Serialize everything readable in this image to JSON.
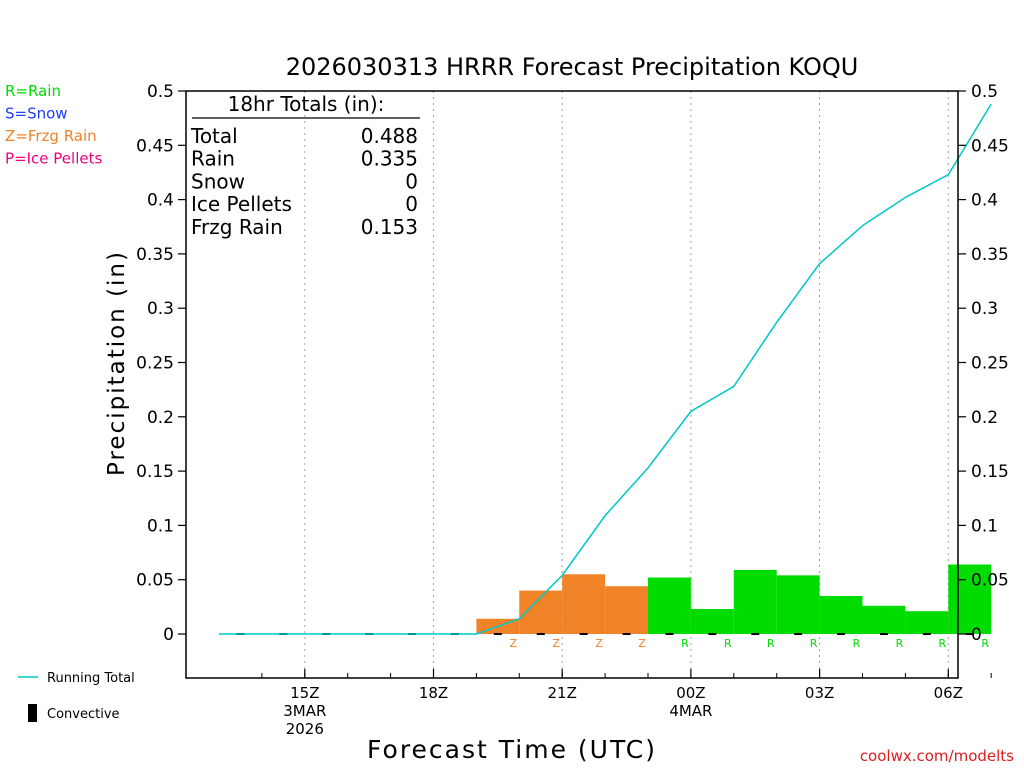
{
  "chart_data": {
    "type": "bar",
    "title": "2026030313 HRRR Forecast Precipitation KOQU",
    "xlabel": "Forecast Time (UTC)",
    "ylabel": "Precipitation (in)",
    "ylim": [
      -0.04,
      0.5
    ],
    "yticks": [
      0,
      0.05,
      0.1,
      0.15,
      0.2,
      0.25,
      0.3,
      0.35,
      0.4,
      0.45,
      0.5
    ],
    "ytick_labels": [
      "0",
      "0.05",
      "0.1",
      "0.15",
      "0.2",
      "0.25",
      "0.3",
      "0.35",
      "0.4",
      "0.45",
      "0.5"
    ],
    "x_start_hour": 13,
    "x_end_hour": 31,
    "xticks": [
      {
        "hour": 15,
        "lines": [
          "15Z",
          "3MAR",
          "2026"
        ]
      },
      {
        "hour": 18,
        "lines": [
          "18Z"
        ]
      },
      {
        "hour": 21,
        "lines": [
          "21Z"
        ]
      },
      {
        "hour": 24,
        "lines": [
          "00Z",
          "4MAR"
        ]
      },
      {
        "hour": 27,
        "lines": [
          "03Z"
        ]
      },
      {
        "hour": 30,
        "lines": [
          "06Z"
        ]
      }
    ],
    "precip_hours": [
      14,
      15,
      16,
      17,
      18,
      19,
      20,
      21,
      22,
      23,
      24,
      25,
      26,
      27,
      28,
      29,
      30,
      31
    ],
    "precip_types": [
      "",
      "",
      "",
      "",
      "",
      "",
      "Z",
      "Z",
      "Z",
      "Z",
      "R",
      "R",
      "R",
      "R",
      "R",
      "R",
      "R",
      "R"
    ],
    "hourly_precip": [
      0,
      0,
      0,
      0,
      0,
      0,
      0.014,
      0.04,
      0.055,
      0.044,
      0.052,
      0.023,
      0.059,
      0.054,
      0.035,
      0.026,
      0.021,
      0.064
    ],
    "running_total_hours": [
      13,
      14,
      15,
      16,
      17,
      18,
      19,
      20,
      21,
      22,
      23,
      24,
      25,
      26,
      27,
      28,
      29,
      30,
      31
    ],
    "running_total": [
      0,
      0,
      0,
      0,
      0,
      0,
      0,
      0.014,
      0.054,
      0.109,
      0.153,
      0.205,
      0.228,
      0.287,
      0.341,
      0.376,
      0.402,
      0.423,
      0.488
    ],
    "convective": [
      0,
      0,
      0,
      0,
      0,
      0,
      0,
      0,
      0,
      0,
      0,
      0,
      0,
      0,
      0,
      0,
      0,
      0
    ],
    "colors": {
      "rain": "#00dc00",
      "snow": "#1e3cff",
      "frzg_rain": "#f08228",
      "ice_pellets": "#f00082",
      "running_total": "#00c8c8",
      "convective": "#000000",
      "grid": "#a0a0a0",
      "axis": "#000000"
    },
    "type_legend": [
      {
        "code": "R",
        "label": "R=Rain",
        "color": "#00dc00"
      },
      {
        "code": "S",
        "label": "S=Snow",
        "color": "#1e3cff"
      },
      {
        "code": "Z",
        "label": "Z=Frzg Rain",
        "color": "#f08228"
      },
      {
        "code": "P",
        "label": "P=Ice Pellets",
        "color": "#f00082"
      }
    ],
    "series_legend": {
      "running_total": "Running Total",
      "convective": "Convective"
    },
    "totals": {
      "header": "18hr Totals (in):",
      "rows": [
        {
          "label": "Total",
          "value": "0.488"
        },
        {
          "label": "Rain",
          "value": "0.335"
        },
        {
          "label": "Snow",
          "value": "0"
        },
        {
          "label": "Ice Pellets",
          "value": "0"
        },
        {
          "label": "Frzg Rain",
          "value": "0.153"
        }
      ]
    },
    "credit": "coolwx.com/modelts"
  }
}
